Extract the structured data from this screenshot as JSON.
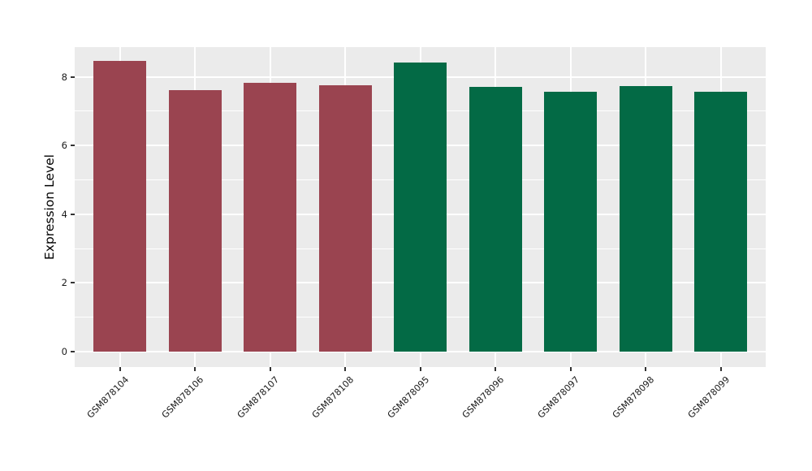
{
  "chart_data": {
    "type": "bar",
    "title": "",
    "xlabel": "",
    "ylabel": "Expression Level",
    "categories": [
      "GSM878104",
      "GSM878106",
      "GSM878107",
      "GSM878108",
      "GSM878095",
      "GSM878096",
      "GSM878097",
      "GSM878098",
      "GSM878099"
    ],
    "values": [
      8.47,
      7.62,
      7.83,
      7.76,
      8.42,
      7.7,
      7.56,
      7.74,
      7.57
    ],
    "bar_colors": [
      "#9A4450",
      "#9A4450",
      "#9A4450",
      "#9A4450",
      "#036A45",
      "#036A45",
      "#036A45",
      "#036A45",
      "#036A45"
    ],
    "group_colors": {
      "left_group_red": "#9A4450",
      "right_group_green": "#036A45"
    },
    "yticks": [
      0,
      2,
      4,
      6,
      8
    ],
    "yticks_minor": [
      1,
      3,
      5,
      7
    ],
    "ylim": [
      -0.45,
      8.87
    ],
    "grid": true,
    "legend_position": "none",
    "panel_background": "#EBEBEB",
    "gridline_color": "#FFFFFF",
    "tick_color": "#333333",
    "xtick_angle_deg": 45
  }
}
